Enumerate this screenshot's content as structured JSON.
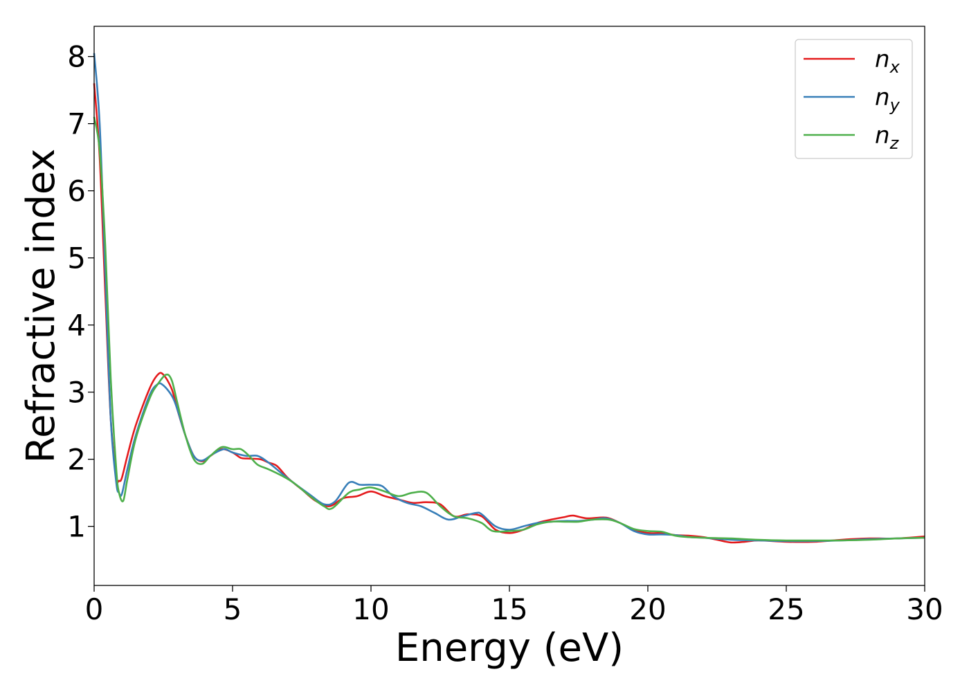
{
  "chart_data": {
    "type": "line",
    "xlabel": "Energy (eV)",
    "ylabel": "Refractive index",
    "xlim": [
      0,
      30
    ],
    "ylim": [
      0.12,
      8.45
    ],
    "xticks": [
      0,
      5,
      10,
      15,
      20,
      25,
      30
    ],
    "yticks": [
      1,
      2,
      3,
      4,
      5,
      6,
      7,
      8
    ],
    "grid": false,
    "legend_position": "top-right",
    "series": [
      {
        "name": "n_x",
        "label_base": "n",
        "label_sub": "x",
        "color": "#e41a1c",
        "points": [
          [
            0,
            7.6
          ],
          [
            0.2,
            6.5
          ],
          [
            0.4,
            4.5
          ],
          [
            0.6,
            2.6
          ],
          [
            0.8,
            1.75
          ],
          [
            0.9,
            1.68
          ],
          [
            1.0,
            1.72
          ],
          [
            1.2,
            2.05
          ],
          [
            1.5,
            2.5
          ],
          [
            2.0,
            3.05
          ],
          [
            2.3,
            3.26
          ],
          [
            2.5,
            3.26
          ],
          [
            2.8,
            3.05
          ],
          [
            3.0,
            2.75
          ],
          [
            3.3,
            2.35
          ],
          [
            3.6,
            2.05
          ],
          [
            3.9,
            1.97
          ],
          [
            4.2,
            2.05
          ],
          [
            4.6,
            2.15
          ],
          [
            5.0,
            2.1
          ],
          [
            5.3,
            2.02
          ],
          [
            5.6,
            2.01
          ],
          [
            6.0,
            2.0
          ],
          [
            6.3,
            1.95
          ],
          [
            6.6,
            1.9
          ],
          [
            7.0,
            1.72
          ],
          [
            7.5,
            1.55
          ],
          [
            8.0,
            1.38
          ],
          [
            8.5,
            1.3
          ],
          [
            9.0,
            1.42
          ],
          [
            9.5,
            1.45
          ],
          [
            10.0,
            1.52
          ],
          [
            10.5,
            1.45
          ],
          [
            11.0,
            1.4
          ],
          [
            11.5,
            1.35
          ],
          [
            12.0,
            1.36
          ],
          [
            12.5,
            1.33
          ],
          [
            13.0,
            1.15
          ],
          [
            13.5,
            1.18
          ],
          [
            14.0,
            1.15
          ],
          [
            14.5,
            0.95
          ],
          [
            15.0,
            0.9
          ],
          [
            15.5,
            0.95
          ],
          [
            16.0,
            1.05
          ],
          [
            16.5,
            1.1
          ],
          [
            17.0,
            1.14
          ],
          [
            17.3,
            1.16
          ],
          [
            17.8,
            1.12
          ],
          [
            18.5,
            1.13
          ],
          [
            19.0,
            1.05
          ],
          [
            19.5,
            0.95
          ],
          [
            20.0,
            0.9
          ],
          [
            20.5,
            0.9
          ],
          [
            21.0,
            0.87
          ],
          [
            21.5,
            0.86
          ],
          [
            22.0,
            0.84
          ],
          [
            22.5,
            0.8
          ],
          [
            23.0,
            0.76
          ],
          [
            23.5,
            0.77
          ],
          [
            24.0,
            0.79
          ],
          [
            25.0,
            0.77
          ],
          [
            26.0,
            0.77
          ],
          [
            27.0,
            0.8
          ],
          [
            28.0,
            0.82
          ],
          [
            29.0,
            0.82
          ],
          [
            30.0,
            0.85
          ]
        ]
      },
      {
        "name": "n_y",
        "label_base": "n",
        "label_sub": "y",
        "color": "#377eb8",
        "points": [
          [
            0,
            8.05
          ],
          [
            0.2,
            7.0
          ],
          [
            0.4,
            4.8
          ],
          [
            0.6,
            2.6
          ],
          [
            0.8,
            1.65
          ],
          [
            0.9,
            1.5
          ],
          [
            1.0,
            1.48
          ],
          [
            1.2,
            1.85
          ],
          [
            1.5,
            2.35
          ],
          [
            2.0,
            2.95
          ],
          [
            2.3,
            3.12
          ],
          [
            2.5,
            3.1
          ],
          [
            2.8,
            2.95
          ],
          [
            3.0,
            2.75
          ],
          [
            3.3,
            2.35
          ],
          [
            3.6,
            2.05
          ],
          [
            3.9,
            1.98
          ],
          [
            4.3,
            2.08
          ],
          [
            4.7,
            2.15
          ],
          [
            5.0,
            2.1
          ],
          [
            5.5,
            2.05
          ],
          [
            5.9,
            2.05
          ],
          [
            6.3,
            1.95
          ],
          [
            6.8,
            1.78
          ],
          [
            7.2,
            1.65
          ],
          [
            7.8,
            1.47
          ],
          [
            8.3,
            1.33
          ],
          [
            8.7,
            1.37
          ],
          [
            9.2,
            1.65
          ],
          [
            9.6,
            1.62
          ],
          [
            10.0,
            1.62
          ],
          [
            10.4,
            1.6
          ],
          [
            10.8,
            1.45
          ],
          [
            11.3,
            1.35
          ],
          [
            11.8,
            1.3
          ],
          [
            12.3,
            1.2
          ],
          [
            12.8,
            1.1
          ],
          [
            13.3,
            1.15
          ],
          [
            13.8,
            1.2
          ],
          [
            14.0,
            1.18
          ],
          [
            14.5,
            1.0
          ],
          [
            15.0,
            0.95
          ],
          [
            15.5,
            1.0
          ],
          [
            16.0,
            1.05
          ],
          [
            16.5,
            1.07
          ],
          [
            17.0,
            1.08
          ],
          [
            17.5,
            1.08
          ],
          [
            18.0,
            1.1
          ],
          [
            18.5,
            1.12
          ],
          [
            19.0,
            1.05
          ],
          [
            19.5,
            0.93
          ],
          [
            20.0,
            0.88
          ],
          [
            20.5,
            0.88
          ],
          [
            21.0,
            0.87
          ],
          [
            21.5,
            0.84
          ],
          [
            22.0,
            0.83
          ],
          [
            23.0,
            0.8
          ],
          [
            24.0,
            0.79
          ],
          [
            25.0,
            0.78
          ],
          [
            26.0,
            0.78
          ],
          [
            27.0,
            0.79
          ],
          [
            28.0,
            0.81
          ],
          [
            29.0,
            0.82
          ],
          [
            30.0,
            0.83
          ]
        ]
      },
      {
        "name": "n_z",
        "label_base": "n",
        "label_sub": "z",
        "color": "#4daf4a",
        "points": [
          [
            0,
            7.1
          ],
          [
            0.2,
            6.6
          ],
          [
            0.4,
            5.2
          ],
          [
            0.6,
            3.2
          ],
          [
            0.8,
            1.85
          ],
          [
            0.9,
            1.5
          ],
          [
            1.05,
            1.38
          ],
          [
            1.2,
            1.7
          ],
          [
            1.5,
            2.3
          ],
          [
            2.0,
            2.9
          ],
          [
            2.3,
            3.12
          ],
          [
            2.6,
            3.26
          ],
          [
            2.8,
            3.18
          ],
          [
            3.0,
            2.85
          ],
          [
            3.3,
            2.35
          ],
          [
            3.6,
            2.0
          ],
          [
            3.9,
            1.93
          ],
          [
            4.2,
            2.05
          ],
          [
            4.6,
            2.18
          ],
          [
            5.0,
            2.15
          ],
          [
            5.3,
            2.15
          ],
          [
            5.6,
            2.05
          ],
          [
            5.9,
            1.92
          ],
          [
            6.3,
            1.85
          ],
          [
            6.8,
            1.75
          ],
          [
            7.2,
            1.65
          ],
          [
            7.8,
            1.45
          ],
          [
            8.3,
            1.3
          ],
          [
            8.6,
            1.27
          ],
          [
            9.2,
            1.5
          ],
          [
            9.6,
            1.55
          ],
          [
            10.0,
            1.58
          ],
          [
            10.5,
            1.52
          ],
          [
            11.0,
            1.45
          ],
          [
            11.5,
            1.5
          ],
          [
            12.0,
            1.5
          ],
          [
            12.5,
            1.3
          ],
          [
            13.0,
            1.15
          ],
          [
            13.5,
            1.12
          ],
          [
            14.0,
            1.05
          ],
          [
            14.4,
            0.93
          ],
          [
            15.0,
            0.93
          ],
          [
            15.5,
            0.95
          ],
          [
            16.0,
            1.03
          ],
          [
            16.5,
            1.07
          ],
          [
            17.0,
            1.07
          ],
          [
            17.5,
            1.07
          ],
          [
            18.0,
            1.1
          ],
          [
            18.6,
            1.1
          ],
          [
            19.0,
            1.05
          ],
          [
            19.5,
            0.96
          ],
          [
            20.0,
            0.93
          ],
          [
            20.5,
            0.92
          ],
          [
            21.0,
            0.86
          ],
          [
            21.5,
            0.84
          ],
          [
            22.0,
            0.83
          ],
          [
            23.0,
            0.82
          ],
          [
            24.0,
            0.8
          ],
          [
            25.0,
            0.79
          ],
          [
            26.0,
            0.79
          ],
          [
            27.0,
            0.79
          ],
          [
            28.0,
            0.8
          ],
          [
            29.0,
            0.82
          ],
          [
            30.0,
            0.83
          ]
        ]
      }
    ]
  }
}
